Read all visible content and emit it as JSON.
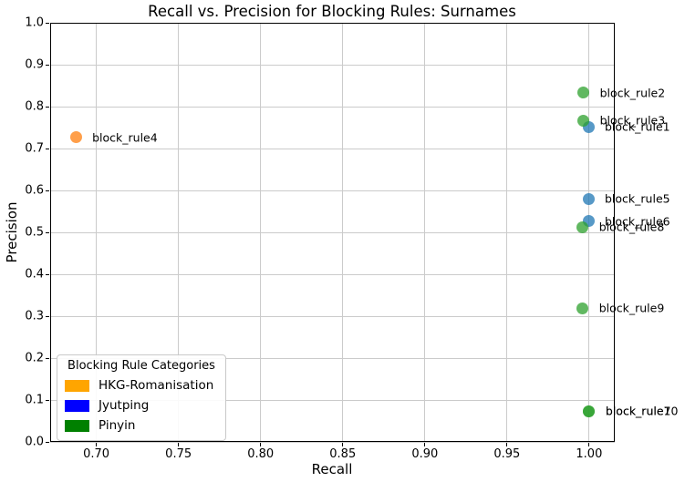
{
  "figure": {
    "title": "Recall vs. Precision for Blocking Rules: Surnames"
  },
  "chart_data": {
    "type": "scatter",
    "title": "Recall vs. Precision for Blocking Rules: Surnames",
    "xlabel": "Recall",
    "ylabel": "Precision",
    "xlim": [
      0.6719,
      1.0156
    ],
    "ylim": [
      0.0,
      1.0
    ],
    "x_ticks": [
      0.7,
      0.75,
      0.8,
      0.85,
      0.9,
      0.95,
      1.0
    ],
    "x_tick_labels": [
      "0.70",
      "0.75",
      "0.80",
      "0.85",
      "0.90",
      "0.95",
      "1.00"
    ],
    "y_ticks": [
      0.0,
      0.1,
      0.2,
      0.3,
      0.4,
      0.5,
      0.6,
      0.7,
      0.8,
      0.9,
      1.0
    ],
    "y_tick_labels": [
      "0.0",
      "0.1",
      "0.2",
      "0.3",
      "0.4",
      "0.5",
      "0.6",
      "0.7",
      "0.8",
      "0.9",
      "1.0"
    ],
    "grid": true,
    "grid_color": "#cbcbcb",
    "legend": {
      "title": "Blocking Rule Categories",
      "position": "lower left",
      "entries": [
        {
          "label": "HKG-Romanisation",
          "color": "#ffa500"
        },
        {
          "label": "Jyutping",
          "color": "#0000ff"
        },
        {
          "label": "Pinyin",
          "color": "#008000"
        }
      ]
    },
    "series": [
      {
        "name": "HKG-Romanisation",
        "color": "#ff7f0e",
        "points": [
          {
            "label": "block_rule4",
            "x": 0.6875,
            "y": 0.727
          }
        ]
      },
      {
        "name": "Jyutping",
        "color": "#1f77b4",
        "points": [
          {
            "label": "block_rule1",
            "x": 0.9995,
            "y": 0.752
          },
          {
            "label": "block_rule5",
            "x": 0.9995,
            "y": 0.58
          },
          {
            "label": "block_rule6",
            "x": 0.9995,
            "y": 0.527
          }
        ]
      },
      {
        "name": "Pinyin",
        "color": "#2ca02c",
        "points": [
          {
            "label": "block_rule2",
            "x": 0.9965,
            "y": 0.833
          },
          {
            "label": "block_rule3",
            "x": 0.9965,
            "y": 0.767
          },
          {
            "label": "block_rule8",
            "x": 0.996,
            "y": 0.513
          },
          {
            "label": "block_rule9",
            "x": 0.996,
            "y": 0.319
          },
          {
            "label": "block_rule7",
            "x": 1.0,
            "y": 0.073
          },
          {
            "label": "block_rule10",
            "x": 1.0,
            "y": 0.073
          }
        ]
      }
    ]
  }
}
